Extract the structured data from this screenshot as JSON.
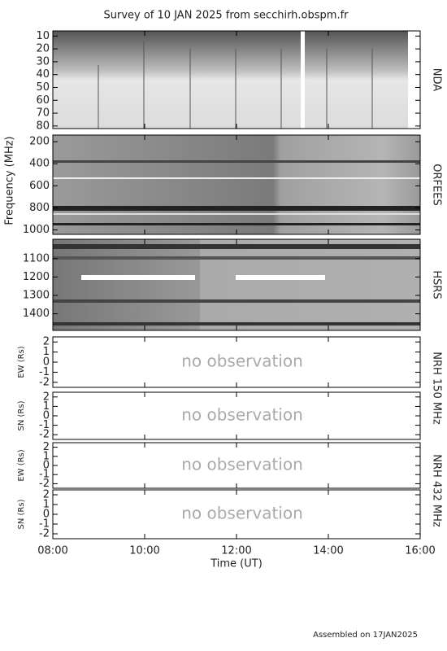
{
  "title": "Survey of 10 JAN 2025 from secchirh.obspm.fr",
  "frequency_label": "Frequency (MHz)",
  "time_axis": {
    "label": "Time (UT)",
    "xlim": [
      8,
      16
    ],
    "xticks": [
      {
        "value": 8,
        "label": "08:00"
      },
      {
        "value": 10,
        "label": "10:00"
      },
      {
        "value": 12,
        "label": "12:00"
      },
      {
        "value": 14,
        "label": "14:00"
      },
      {
        "value": 16,
        "label": "16:00"
      }
    ]
  },
  "spectrograms": [
    {
      "name": "NDA",
      "ylim": [
        82,
        6
      ],
      "yticks": [
        10,
        20,
        30,
        40,
        50,
        60,
        70,
        80
      ]
    },
    {
      "name": "ORFEES",
      "ylim": [
        1040,
        140
      ],
      "yticks": [
        200,
        400,
        600,
        800,
        1000
      ]
    },
    {
      "name": "HSRS",
      "ylim": [
        1490,
        995
      ],
      "yticks": [
        1100,
        1200,
        1300,
        1400
      ]
    }
  ],
  "nrh_groups": [
    {
      "name": "NRH 150 MHz",
      "panels": [
        {
          "axis_label": "EW (Rs)",
          "ylim": [
            -2.5,
            2.5
          ],
          "yticks": [
            -2,
            -1,
            0,
            1,
            2
          ],
          "message": "no observation"
        },
        {
          "axis_label": "SN (Rs)",
          "ylim": [
            -2.5,
            2.5
          ],
          "yticks": [
            -2,
            -1,
            0,
            1,
            2
          ],
          "message": "no observation"
        }
      ]
    },
    {
      "name": "NRH 432 MHz",
      "panels": [
        {
          "axis_label": "EW (Rs)",
          "ylim": [
            -2.5,
            2.5
          ],
          "yticks": [
            -2,
            -1,
            0,
            1,
            2
          ],
          "message": "no observation"
        },
        {
          "axis_label": "SN (Rs)",
          "ylim": [
            -2.5,
            2.5
          ],
          "yticks": [
            -2,
            -1,
            0,
            1,
            2
          ],
          "message": "no observation"
        }
      ]
    }
  ],
  "footer": "Assembled on 17JAN2025"
}
